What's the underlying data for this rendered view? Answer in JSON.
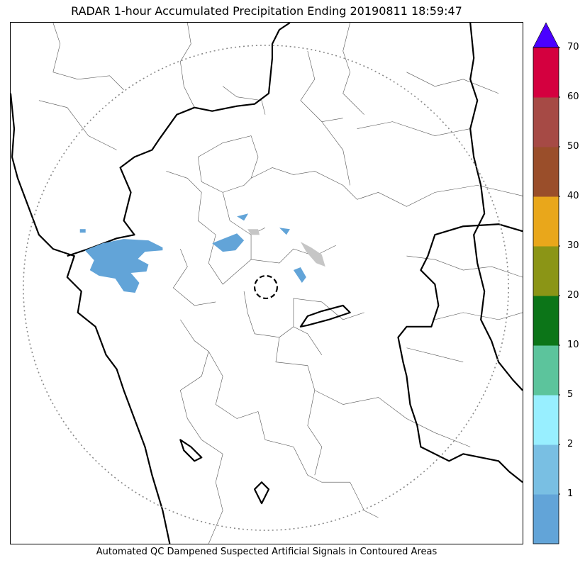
{
  "title": "RADAR 1-hour Accumulated Precipitation Ending 20190811 18:59:47",
  "footer": "Automated QC Dampened Suspected Artificial Signals in Contoured Areas",
  "legend": {
    "levels": [
      {
        "label": "1",
        "color": "#62a4d8"
      },
      {
        "label": "2",
        "color": "#79bfe3"
      },
      {
        "label": "5",
        "color": "#98efff"
      },
      {
        "label": "10",
        "color": "#5cc49c"
      },
      {
        "label": "20",
        "color": "#0c7518"
      },
      {
        "label": "30",
        "color": "#8b9516"
      },
      {
        "label": "40",
        "color": "#e9a71b"
      },
      {
        "label": "50",
        "color": "#9a4e2a"
      },
      {
        "label": "60",
        "color": "#a64a45"
      },
      {
        "label": "70",
        "color": "#d4003f"
      }
    ],
    "extend_color": "#4a00ff"
  },
  "colors": {
    "state_border": "#000000",
    "district_border": "#555555",
    "range_ring": "#888888",
    "rain": "#62a4d8",
    "artificial": "#c6c6c6"
  }
}
